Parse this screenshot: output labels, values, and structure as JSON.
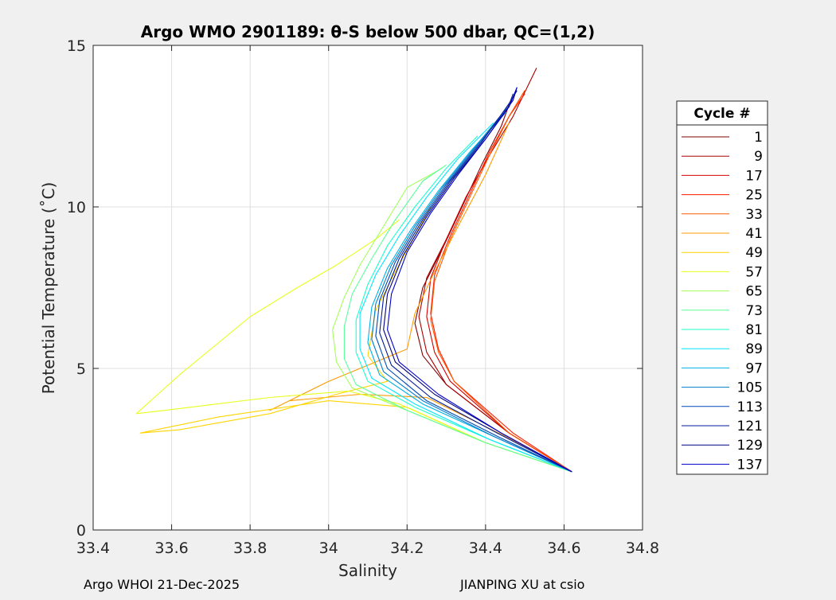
{
  "chart_data": {
    "type": "line",
    "title": "Argo WMO 2901189: θ-S below 500 dbar,  QC=(1,2)",
    "xlabel": "Salinity",
    "ylabel": "Potential Temperature (˚C)",
    "xlim": [
      33.4,
      34.8
    ],
    "ylim": [
      0,
      15
    ],
    "xticks": [
      "33.4",
      "33.6",
      "33.8",
      "34",
      "34.2",
      "34.4",
      "34.6",
      "34.8"
    ],
    "yticks": [
      "0",
      "5",
      "10",
      "15"
    ],
    "grid": true,
    "legend_title": "Cycle #",
    "legend_position": "outside-right",
    "series": [
      {
        "name": "1",
        "color": "#7f0000",
        "points": [
          [
            34.62,
            1.8
          ],
          [
            34.46,
            3.0
          ],
          [
            34.3,
            4.5
          ],
          [
            34.24,
            5.4
          ],
          [
            34.22,
            6.4
          ],
          [
            34.24,
            7.5
          ],
          [
            34.29,
            8.7
          ],
          [
            34.34,
            10.0
          ],
          [
            34.39,
            11.3
          ],
          [
            34.44,
            12.5
          ],
          [
            34.47,
            13.5
          ]
        ]
      },
      {
        "name": "9",
        "color": "#ab0000",
        "points": [
          [
            34.62,
            1.8
          ],
          [
            34.46,
            3.0
          ],
          [
            34.3,
            4.5
          ],
          [
            34.25,
            5.5
          ],
          [
            34.23,
            6.6
          ],
          [
            34.25,
            7.8
          ],
          [
            34.3,
            9.0
          ],
          [
            34.35,
            10.3
          ],
          [
            34.41,
            11.6
          ],
          [
            34.47,
            12.8
          ],
          [
            34.53,
            14.3
          ]
        ]
      },
      {
        "name": "17",
        "color": "#d50000",
        "points": [
          [
            34.62,
            1.8
          ],
          [
            34.46,
            3.0
          ],
          [
            34.31,
            4.6
          ],
          [
            34.27,
            5.5
          ],
          [
            34.25,
            6.6
          ],
          [
            34.26,
            7.8
          ],
          [
            34.3,
            9.0
          ],
          [
            34.35,
            10.3
          ],
          [
            34.41,
            11.6
          ],
          [
            34.46,
            12.8
          ],
          [
            34.5,
            13.6
          ]
        ]
      },
      {
        "name": "25",
        "color": "#ff1a00",
        "points": [
          [
            34.62,
            1.8
          ],
          [
            34.47,
            3.0
          ],
          [
            34.32,
            4.6
          ],
          [
            34.28,
            5.6
          ],
          [
            34.26,
            6.7
          ],
          [
            34.27,
            7.9
          ],
          [
            34.31,
            9.1
          ],
          [
            34.36,
            10.4
          ],
          [
            34.41,
            11.7
          ],
          [
            34.46,
            12.8
          ],
          [
            34.5,
            13.5
          ]
        ]
      },
      {
        "name": "33",
        "color": "#ff5a00",
        "points": [
          [
            34.62,
            1.8
          ],
          [
            34.46,
            3.0
          ],
          [
            34.32,
            4.6
          ],
          [
            34.28,
            5.5
          ],
          [
            34.26,
            6.5
          ],
          [
            34.27,
            7.7
          ],
          [
            34.31,
            9.0
          ],
          [
            34.36,
            10.3
          ],
          [
            34.41,
            11.6
          ],
          [
            34.46,
            12.8
          ],
          [
            34.5,
            13.6
          ]
        ]
      },
      {
        "name": "41",
        "color": "#ff9a00",
        "points": [
          [
            34.62,
            1.8
          ],
          [
            34.45,
            2.9
          ],
          [
            34.25,
            4.1
          ],
          [
            34.08,
            4.2
          ],
          [
            33.9,
            4.0
          ],
          [
            33.85,
            3.7
          ],
          [
            34.0,
            4.6
          ],
          [
            34.2,
            5.6
          ],
          [
            34.22,
            6.7
          ],
          [
            34.27,
            8.0
          ],
          [
            34.33,
            9.4
          ],
          [
            34.4,
            11.0
          ],
          [
            34.46,
            12.6
          ]
        ]
      },
      {
        "name": "49",
        "color": "#ffd400",
        "points": [
          [
            34.62,
            1.8
          ],
          [
            34.4,
            2.7
          ],
          [
            34.2,
            3.8
          ],
          [
            34.0,
            4.0
          ],
          [
            33.72,
            3.5
          ],
          [
            33.52,
            3.0
          ],
          [
            33.62,
            3.1
          ],
          [
            33.85,
            3.6
          ],
          [
            34.02,
            4.2
          ],
          [
            34.15,
            4.6
          ],
          [
            34.1,
            5.4
          ],
          [
            34.12,
            6.8
          ],
          [
            34.17,
            8.0
          ],
          [
            34.22,
            9.1
          ],
          [
            34.26,
            10.0
          ]
        ]
      },
      {
        "name": "57",
        "color": "#e6ff1a",
        "points": [
          [
            34.62,
            1.8
          ],
          [
            34.4,
            2.7
          ],
          [
            34.18,
            3.9
          ],
          [
            34.05,
            4.3
          ],
          [
            33.85,
            4.1
          ],
          [
            33.58,
            3.7
          ],
          [
            33.51,
            3.6
          ],
          [
            33.62,
            4.8
          ],
          [
            33.8,
            6.6
          ],
          [
            33.92,
            7.5
          ],
          [
            34.02,
            8.2
          ],
          [
            34.12,
            9.0
          ],
          [
            34.18,
            9.6
          ]
        ]
      },
      {
        "name": "65",
        "color": "#a4ff5a",
        "points": [
          [
            34.62,
            1.8
          ],
          [
            34.4,
            2.7
          ],
          [
            34.2,
            3.7
          ],
          [
            34.06,
            4.4
          ],
          [
            34.02,
            5.2
          ],
          [
            34.01,
            6.2
          ],
          [
            34.04,
            7.2
          ],
          [
            34.08,
            8.2
          ],
          [
            34.14,
            9.4
          ],
          [
            34.2,
            10.6
          ],
          [
            34.29,
            11.2
          ]
        ]
      },
      {
        "name": "73",
        "color": "#5aff9a",
        "points": [
          [
            34.62,
            1.8
          ],
          [
            34.4,
            2.7
          ],
          [
            34.2,
            3.7
          ],
          [
            34.07,
            4.5
          ],
          [
            34.04,
            5.3
          ],
          [
            34.04,
            6.3
          ],
          [
            34.06,
            7.3
          ],
          [
            34.11,
            8.4
          ],
          [
            34.17,
            9.6
          ],
          [
            34.24,
            10.8
          ],
          [
            34.3,
            11.3
          ]
        ]
      },
      {
        "name": "81",
        "color": "#1affcc",
        "points": [
          [
            34.62,
            1.8
          ],
          [
            34.41,
            2.8
          ],
          [
            34.22,
            3.8
          ],
          [
            34.1,
            4.6
          ],
          [
            34.07,
            5.5
          ],
          [
            34.07,
            6.5
          ],
          [
            34.1,
            7.6
          ],
          [
            34.15,
            8.8
          ],
          [
            34.22,
            10.0
          ],
          [
            34.3,
            11.2
          ],
          [
            34.38,
            12.2
          ]
        ]
      },
      {
        "name": "89",
        "color": "#00e6ff",
        "points": [
          [
            34.62,
            1.8
          ],
          [
            34.41,
            2.8
          ],
          [
            34.22,
            3.9
          ],
          [
            34.11,
            4.7
          ],
          [
            34.08,
            5.6
          ],
          [
            34.08,
            6.7
          ],
          [
            34.12,
            7.9
          ],
          [
            34.18,
            9.1
          ],
          [
            34.25,
            10.3
          ],
          [
            34.33,
            11.5
          ],
          [
            34.42,
            12.6
          ]
        ]
      },
      {
        "name": "97",
        "color": "#00b0e6",
        "points": [
          [
            34.62,
            1.8
          ],
          [
            34.42,
            2.9
          ],
          [
            34.24,
            3.9
          ],
          [
            34.13,
            4.8
          ],
          [
            34.1,
            5.8
          ],
          [
            34.11,
            6.9
          ],
          [
            34.15,
            8.1
          ],
          [
            34.21,
            9.3
          ],
          [
            34.28,
            10.5
          ],
          [
            34.36,
            11.7
          ],
          [
            34.45,
            12.9
          ]
        ]
      },
      {
        "name": "105",
        "color": "#007ccc",
        "points": [
          [
            34.62,
            1.8
          ],
          [
            34.42,
            2.9
          ],
          [
            34.24,
            4.0
          ],
          [
            34.14,
            4.9
          ],
          [
            34.11,
            5.9
          ],
          [
            34.12,
            7.0
          ],
          [
            34.16,
            8.2
          ],
          [
            34.22,
            9.4
          ],
          [
            34.29,
            10.6
          ],
          [
            34.37,
            11.8
          ],
          [
            34.45,
            13.0
          ],
          [
            34.47,
            13.4
          ]
        ]
      },
      {
        "name": "113",
        "color": "#0048b3",
        "points": [
          [
            34.62,
            1.8
          ],
          [
            34.43,
            2.9
          ],
          [
            34.25,
            4.0
          ],
          [
            34.15,
            5.0
          ],
          [
            34.12,
            6.0
          ],
          [
            34.13,
            7.1
          ],
          [
            34.17,
            8.3
          ],
          [
            34.23,
            9.5
          ],
          [
            34.3,
            10.7
          ],
          [
            34.38,
            11.9
          ],
          [
            34.46,
            13.1
          ],
          [
            34.47,
            13.5
          ]
        ]
      },
      {
        "name": "121",
        "color": "#001a99",
        "points": [
          [
            34.62,
            1.8
          ],
          [
            34.43,
            3.0
          ],
          [
            34.26,
            4.1
          ],
          [
            34.16,
            5.1
          ],
          [
            34.13,
            6.1
          ],
          [
            34.14,
            7.2
          ],
          [
            34.18,
            8.4
          ],
          [
            34.24,
            9.6
          ],
          [
            34.31,
            10.8
          ],
          [
            34.39,
            12.0
          ],
          [
            34.46,
            13.2
          ],
          [
            34.48,
            13.6
          ]
        ]
      },
      {
        "name": "129",
        "color": "#000080",
        "points": [
          [
            34.62,
            1.8
          ],
          [
            34.44,
            3.0
          ],
          [
            34.27,
            4.2
          ],
          [
            34.17,
            5.2
          ],
          [
            34.14,
            6.2
          ],
          [
            34.15,
            7.3
          ],
          [
            34.19,
            8.5
          ],
          [
            34.25,
            9.7
          ],
          [
            34.32,
            10.9
          ],
          [
            34.4,
            12.1
          ],
          [
            34.47,
            13.3
          ],
          [
            34.48,
            13.7
          ]
        ]
      },
      {
        "name": "137",
        "color": "#0000cc",
        "points": [
          [
            34.62,
            1.8
          ],
          [
            34.44,
            3.0
          ],
          [
            34.28,
            4.2
          ],
          [
            34.18,
            5.2
          ],
          [
            34.15,
            6.2
          ],
          [
            34.16,
            7.3
          ],
          [
            34.2,
            8.6
          ],
          [
            34.26,
            9.8
          ],
          [
            34.33,
            11.0
          ],
          [
            34.4,
            12.1
          ],
          [
            34.46,
            13.1
          ],
          [
            34.48,
            13.7
          ]
        ]
      }
    ]
  },
  "footer": {
    "left": "Argo WHOI 21-Dec-2025",
    "right": "JIANPING XU at csio"
  }
}
